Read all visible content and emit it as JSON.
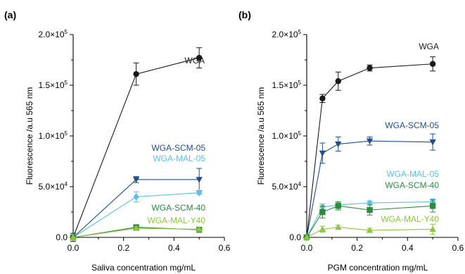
{
  "chart_data": [
    {
      "panel_label": "(a)",
      "type": "line",
      "xlabel": "Saliva concentration mg/mL",
      "ylabel": "Fluorescence /a.u 565 nm",
      "xlim": [
        0,
        0.6
      ],
      "ylim": [
        0,
        200000
      ],
      "x_ticks": [
        "0.0",
        "0.2",
        "0.4",
        "0.6"
      ],
      "y_ticks": [
        {
          "value": 0,
          "mant": "0.0",
          "exp": ""
        },
        {
          "value": 50000,
          "mant": "5.0×10",
          "exp": "4"
        },
        {
          "value": 100000,
          "mant": "1.0×10",
          "exp": "5"
        },
        {
          "value": 150000,
          "mant": "1.5×10",
          "exp": "5"
        },
        {
          "value": 200000,
          "mant": "2.0×10",
          "exp": "5"
        }
      ],
      "series": [
        {
          "name": "WGA",
          "color": "#1a1a1a",
          "marker": "circle",
          "x": [
            0,
            0.25,
            0.5
          ],
          "y": [
            0,
            161000,
            177000
          ],
          "err": [
            4000,
            11000,
            10000
          ]
        },
        {
          "name": "WGA-SCM-05",
          "color": "#1f4e8c",
          "marker": "triangle-down",
          "x": [
            0,
            0.25,
            0.5
          ],
          "y": [
            0,
            57000,
            57000
          ],
          "err": [
            0,
            3000,
            11000
          ]
        },
        {
          "name": "WGA-MAL-05",
          "color": "#5bc0eb",
          "marker": "diamond",
          "x": [
            0,
            0.25,
            0.5
          ],
          "y": [
            0,
            40000,
            44000
          ],
          "err": [
            0,
            5000,
            1500
          ]
        },
        {
          "name": "WGA-SCM-40",
          "color": "#2e8b3e",
          "marker": "square",
          "x": [
            0,
            0.25,
            0.5
          ],
          "y": [
            0,
            10000,
            7500
          ],
          "err": [
            0,
            1500,
            1500
          ]
        },
        {
          "name": "WGA-MAL-Y40",
          "color": "#8cc63f",
          "marker": "triangle-up",
          "x": [
            0,
            0.25,
            0.5
          ],
          "y": [
            0,
            9000,
            8000
          ],
          "err": [
            0,
            1500,
            1000
          ]
        }
      ],
      "series_labels": [
        {
          "text": "WGA",
          "color": "#1a1a1a"
        },
        {
          "text": "WGA-SCM-05",
          "color": "#1f4e8c"
        },
        {
          "text": "WGA-MAL-05",
          "color": "#5bc0eb"
        },
        {
          "text": "WGA-SCM-40",
          "color": "#2e8b3e"
        },
        {
          "text": "WGA-MAL-Y40",
          "color": "#8cc63f"
        }
      ]
    },
    {
      "panel_label": "(b)",
      "type": "line",
      "xlabel": "PGM concentration mg/mL",
      "ylabel": "Fluorescence /a.u 565 nm",
      "xlim": [
        0,
        0.6
      ],
      "ylim": [
        0,
        200000
      ],
      "x_ticks": [
        "0.0",
        "0.2",
        "0.4",
        "0.6"
      ],
      "y_ticks": [
        {
          "value": 0,
          "mant": "0.0",
          "exp": ""
        },
        {
          "value": 50000,
          "mant": "5.0×10",
          "exp": "4"
        },
        {
          "value": 100000,
          "mant": "1.0×10",
          "exp": "5"
        },
        {
          "value": 150000,
          "mant": "1.5×10",
          "exp": "5"
        },
        {
          "value": 200000,
          "mant": "2.0×10",
          "exp": "5"
        }
      ],
      "series": [
        {
          "name": "WGA",
          "color": "#1a1a1a",
          "marker": "circle",
          "x": [
            0,
            0.0625,
            0.125,
            0.25,
            0.5
          ],
          "y": [
            0,
            137000,
            154000,
            167000,
            171000
          ],
          "err": [
            0,
            4000,
            9000,
            3000,
            7000
          ]
        },
        {
          "name": "WGA-SCM-05",
          "color": "#1f4e8c",
          "marker": "triangle-down",
          "x": [
            0,
            0.0625,
            0.125,
            0.25,
            0.5
          ],
          "y": [
            0,
            83000,
            92000,
            95000,
            94000
          ],
          "err": [
            0,
            10000,
            7000,
            4000,
            8000
          ]
        },
        {
          "name": "WGA-MAL-05",
          "color": "#5bc0eb",
          "marker": "diamond",
          "x": [
            0,
            0.0625,
            0.125,
            0.25,
            0.5
          ],
          "y": [
            0,
            30000,
            32000,
            34000,
            35000
          ],
          "err": [
            0,
            3000,
            2000,
            2000,
            3000
          ]
        },
        {
          "name": "WGA-SCM-40",
          "color": "#2e8b3e",
          "marker": "square",
          "x": [
            0,
            0.0625,
            0.125,
            0.25,
            0.5
          ],
          "y": [
            0,
            25000,
            31000,
            27000,
            31000
          ],
          "err": [
            0,
            6000,
            4000,
            5000,
            6000
          ]
        },
        {
          "name": "WGA-MAL-Y40",
          "color": "#8cc63f",
          "marker": "triangle-up",
          "x": [
            0,
            0.0625,
            0.125,
            0.25,
            0.5
          ],
          "y": [
            0,
            8000,
            10000,
            7000,
            8000
          ],
          "err": [
            0,
            3000,
            2000,
            2000,
            5000
          ]
        }
      ],
      "series_labels": [
        {
          "text": "WGA",
          "color": "#1a1a1a"
        },
        {
          "text": "WGA-SCM-05",
          "color": "#1f4e8c"
        },
        {
          "text": "WGA-MAL-05",
          "color": "#5bc0eb"
        },
        {
          "text": "WGA-SCM-40",
          "color": "#2e8b3e"
        },
        {
          "text": "WGA-MAL-Y40",
          "color": "#8cc63f"
        }
      ]
    }
  ]
}
